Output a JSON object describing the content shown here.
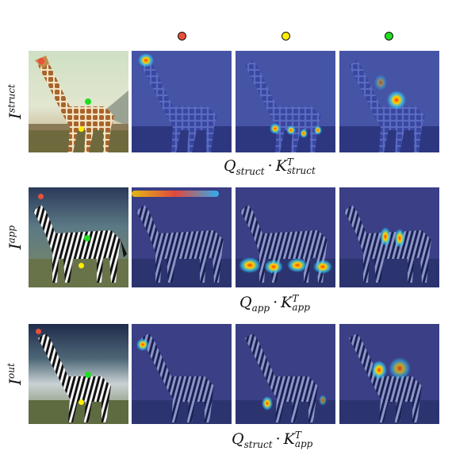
{
  "colors": {
    "query_red": "#e8503a",
    "query_yellow": "#ffee00",
    "query_green": "#22dd22",
    "heatmap_base": "#2b3a9a"
  },
  "rows": [
    {
      "label_base": "I",
      "label_sup": "struct",
      "caption": {
        "q": "Q",
        "q_sub": "struct",
        "dot": "·",
        "k": "K",
        "k_sup": "T",
        "k_sub": "struct"
      },
      "subject": "giraffe"
    },
    {
      "label_base": "I",
      "label_sup": "app",
      "caption": {
        "q": "Q",
        "q_sub": "app",
        "dot": "·",
        "k": "K",
        "k_sup": "T",
        "k_sub": "app"
      },
      "subject": "zebra"
    },
    {
      "label_base": "I",
      "label_sup": "out",
      "caption": {
        "q": "Q",
        "q_sub": "struct",
        "dot": "·",
        "k": "K",
        "k_sup": "T",
        "k_sub": "app"
      },
      "subject": "zebra"
    }
  ]
}
